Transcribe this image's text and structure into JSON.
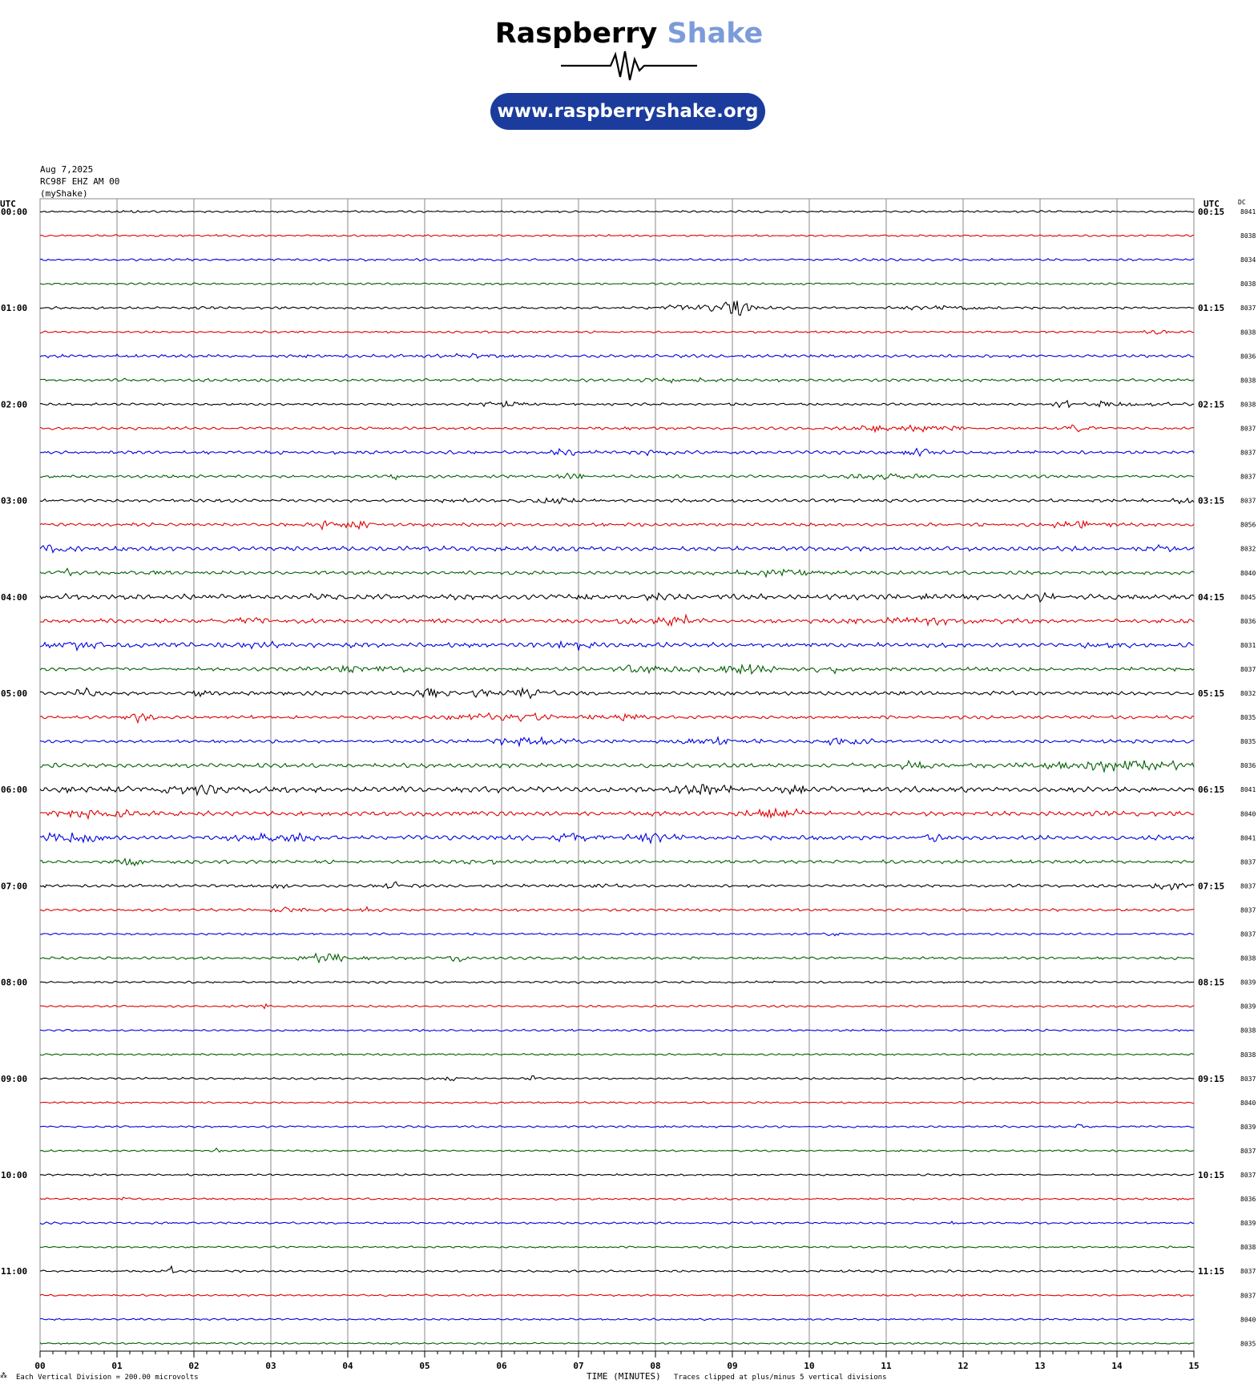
{
  "header": {
    "brand_primary": "Raspberry",
    "brand_accent": "Shake",
    "website": "www.raspberryshake.org",
    "date": "Aug 7,2025",
    "station": "RC98F EHZ AM 00",
    "network_label": "(myShake)"
  },
  "footer": {
    "scale_note": "Each Vertical Division = 200.00 microvolts",
    "xlabel": "TIME (MINUTES)",
    "clip_note": "Traces clipped at plus/minus 5 vertical divisions"
  },
  "colors": {
    "trace_cycle": [
      "#000000",
      "#e00000",
      "#0000e0",
      "#006000"
    ],
    "grid": "#888888",
    "brand_blue": "#1b3c9c",
    "brand_accent": "#7c9bd9"
  },
  "chart_data": {
    "type": "line",
    "title": "",
    "xlabel": "TIME (MINUTES)",
    "ylabel": "",
    "xlim": [
      0,
      15
    ],
    "x_ticks": [
      "00",
      "01",
      "02",
      "03",
      "04",
      "05",
      "06",
      "07",
      "08",
      "09",
      "10",
      "11",
      "12",
      "13",
      "14",
      "15"
    ],
    "left_axis_title": "UTC",
    "right_axis_title": "UTC",
    "dc_title": "DC",
    "hour_labels_left": [
      "00:00",
      "01:00",
      "02:00",
      "03:00",
      "04:00",
      "05:00",
      "06:00",
      "07:00",
      "08:00",
      "09:00",
      "10:00",
      "11:00"
    ],
    "hour_labels_right": [
      "00:15",
      "01:15",
      "02:15",
      "03:15",
      "04:15",
      "05:15",
      "06:15",
      "07:15",
      "08:15",
      "09:15",
      "10:15",
      "11:15"
    ],
    "dc_offsets": [
      "8041",
      "8038",
      "8034",
      "8038",
      "8037",
      "8038",
      "8036",
      "8038",
      "8038",
      "8037",
      "8037",
      "8037",
      "8037",
      "8056",
      "8032",
      "8040",
      "8045",
      "8036",
      "8031",
      "8037",
      "8032",
      "8035",
      "8035",
      "8036",
      "8041",
      "8040",
      "8041",
      "8037",
      "8037",
      "8037",
      "8037",
      "8038",
      "8039",
      "8039",
      "8038",
      "8038",
      "8037",
      "8040",
      "8039",
      "8037",
      "8037",
      "8036",
      "8039",
      "8038",
      "8037",
      "8037",
      "8040",
      "8035"
    ],
    "scale_microvolts_per_division": 200,
    "clip_divisions": 5,
    "series": [
      {
        "amp": 1.0,
        "bursts": [
          [
            1.2,
            0.2,
            1.5
          ]
        ]
      },
      {
        "amp": 1.0,
        "bursts": []
      },
      {
        "amp": 1.1,
        "bursts": []
      },
      {
        "amp": 1.0,
        "bursts": []
      },
      {
        "amp": 1.2,
        "bursts": [
          [
            8.6,
            0.6,
            3.5
          ],
          [
            9.05,
            0.15,
            12
          ],
          [
            11.8,
            0.5,
            2.5
          ]
        ]
      },
      {
        "amp": 1.0,
        "bursts": [
          [
            14.6,
            0.2,
            2
          ]
        ]
      },
      {
        "amp": 1.5,
        "bursts": [
          [
            5.6,
            0.3,
            1.8
          ]
        ]
      },
      {
        "amp": 1.4,
        "bursts": [
          [
            8.1,
            0.2,
            3
          ],
          [
            8.6,
            0.2,
            2
          ]
        ]
      },
      {
        "amp": 1.2,
        "bursts": [
          [
            6.0,
            0.3,
            2.5
          ],
          [
            13.3,
            0.1,
            5
          ],
          [
            13.9,
            0.2,
            4
          ],
          [
            14.4,
            0.3,
            3
          ]
        ]
      },
      {
        "amp": 1.3,
        "bursts": [
          [
            10.8,
            0.2,
            3
          ],
          [
            11.4,
            0.5,
            4
          ],
          [
            13.5,
            0.15,
            5
          ]
        ]
      },
      {
        "amp": 1.6,
        "bursts": [
          [
            6.9,
            0.2,
            4
          ],
          [
            8.05,
            0.15,
            4
          ],
          [
            11.4,
            0.2,
            5
          ]
        ]
      },
      {
        "amp": 1.4,
        "bursts": [
          [
            4.6,
            0.05,
            6
          ],
          [
            6.9,
            0.15,
            5
          ],
          [
            8.4,
            0.1,
            3
          ],
          [
            11.0,
            0.5,
            3
          ]
        ]
      },
      {
        "amp": 1.5,
        "bursts": [
          [
            5.8,
            0.6,
            2
          ],
          [
            6.7,
            0.3,
            3
          ],
          [
            14.9,
            0.2,
            4
          ]
        ]
      },
      {
        "amp": 1.6,
        "bursts": [
          [
            3.7,
            0.15,
            5
          ],
          [
            4.1,
            0.25,
            4
          ],
          [
            13.5,
            0.35,
            4
          ]
        ]
      },
      {
        "amp": 2.2,
        "bursts": [
          [
            0.2,
            0.2,
            5
          ],
          [
            1.1,
            0.1,
            3
          ],
          [
            14.6,
            0.2,
            3
          ]
        ]
      },
      {
        "amp": 1.8,
        "bursts": [
          [
            0.3,
            0.1,
            4
          ],
          [
            1.5,
            0.1,
            3
          ],
          [
            9.5,
            0.5,
            4
          ]
        ]
      },
      {
        "amp": 2.6,
        "bursts": [
          [
            3.6,
            0.2,
            3
          ],
          [
            7.1,
            0.1,
            6
          ],
          [
            8.0,
            0.1,
            5
          ],
          [
            13.1,
            0.15,
            4
          ]
        ]
      },
      {
        "amp": 2.0,
        "bursts": [
          [
            2.8,
            0.4,
            3
          ],
          [
            5.2,
            0.1,
            3
          ],
          [
            7.6,
            0.08,
            5
          ],
          [
            8.3,
            0.25,
            7
          ],
          [
            11.5,
            1.0,
            3
          ]
        ]
      },
      {
        "amp": 2.2,
        "bursts": [
          [
            0.4,
            0.4,
            4
          ],
          [
            2.8,
            0.3,
            3
          ],
          [
            6.9,
            0.3,
            6
          ],
          [
            13.8,
            0.2,
            5
          ]
        ]
      },
      {
        "amp": 1.8,
        "bursts": [
          [
            4.2,
            0.6,
            4
          ],
          [
            7.9,
            0.4,
            5
          ],
          [
            9.2,
            0.7,
            6
          ],
          [
            10.3,
            0.1,
            5
          ]
        ]
      },
      {
        "amp": 1.8,
        "bursts": [
          [
            0.6,
            0.15,
            6
          ],
          [
            2.1,
            0.15,
            4
          ],
          [
            5.1,
            0.2,
            6
          ],
          [
            5.7,
            0.1,
            6
          ],
          [
            6.3,
            0.3,
            6
          ]
        ]
      },
      {
        "amp": 1.6,
        "bursts": [
          [
            1.3,
            0.15,
            6
          ],
          [
            6.0,
            0.6,
            6
          ],
          [
            7.5,
            0.3,
            6
          ]
        ]
      },
      {
        "amp": 1.6,
        "bursts": [
          [
            6.5,
            0.6,
            5
          ],
          [
            8.8,
            0.4,
            5
          ],
          [
            10.5,
            0.3,
            4
          ]
        ]
      },
      {
        "amp": 2.0,
        "bursts": [
          [
            11.4,
            0.2,
            5
          ],
          [
            13.9,
            0.9,
            7
          ]
        ]
      },
      {
        "amp": 2.6,
        "bursts": [
          [
            2.0,
            0.6,
            5
          ],
          [
            8.6,
            0.4,
            6
          ],
          [
            9.8,
            0.15,
            5
          ]
        ]
      },
      {
        "amp": 2.2,
        "bursts": [
          [
            0.7,
            0.5,
            5
          ],
          [
            9.6,
            0.4,
            5
          ]
        ]
      },
      {
        "amp": 2.2,
        "bursts": [
          [
            0.4,
            0.4,
            6
          ],
          [
            2.7,
            0.3,
            5
          ],
          [
            3.3,
            0.3,
            5
          ],
          [
            6.9,
            0.3,
            5
          ],
          [
            8.0,
            0.3,
            5
          ],
          [
            11.6,
            0.15,
            4
          ]
        ]
      },
      {
        "amp": 1.6,
        "bursts": [
          [
            1.2,
            0.2,
            4
          ],
          [
            5.6,
            0.3,
            3
          ]
        ]
      },
      {
        "amp": 1.4,
        "bursts": [
          [
            3.1,
            0.1,
            4
          ],
          [
            4.6,
            0.2,
            4
          ],
          [
            7.4,
            0.15,
            4
          ],
          [
            14.7,
            0.2,
            4
          ]
        ]
      },
      {
        "amp": 1.3,
        "bursts": [
          [
            3.2,
            0.2,
            4
          ],
          [
            4.2,
            0.15,
            3
          ]
        ]
      },
      {
        "amp": 1.0,
        "bursts": [
          [
            10.3,
            0.05,
            5
          ]
        ]
      },
      {
        "amp": 1.3,
        "bursts": [
          [
            3.7,
            0.3,
            6
          ],
          [
            5.4,
            0.15,
            5
          ]
        ]
      },
      {
        "amp": 1.0,
        "bursts": []
      },
      {
        "amp": 1.0,
        "bursts": [
          [
            2.9,
            0.05,
            6
          ]
        ]
      },
      {
        "amp": 1.0,
        "bursts": []
      },
      {
        "amp": 0.9,
        "bursts": []
      },
      {
        "amp": 1.0,
        "bursts": [
          [
            5.3,
            0.15,
            3
          ],
          [
            6.4,
            0.05,
            4
          ]
        ]
      },
      {
        "amp": 0.9,
        "bursts": [
          [
            5.9,
            0.05,
            4
          ]
        ]
      },
      {
        "amp": 1.0,
        "bursts": [
          [
            13.5,
            0.05,
            4
          ]
        ]
      },
      {
        "amp": 0.9,
        "bursts": [
          [
            2.3,
            0.05,
            3
          ]
        ]
      },
      {
        "amp": 0.9,
        "bursts": []
      },
      {
        "amp": 1.0,
        "bursts": [
          [
            1.1,
            0.05,
            3
          ]
        ]
      },
      {
        "amp": 1.0,
        "bursts": [
          [
            11.9,
            0.05,
            4
          ]
        ]
      },
      {
        "amp": 0.9,
        "bursts": []
      },
      {
        "amp": 1.0,
        "bursts": [
          [
            1.7,
            0.05,
            5
          ]
        ]
      },
      {
        "amp": 0.9,
        "bursts": []
      },
      {
        "amp": 0.9,
        "bursts": []
      },
      {
        "amp": 0.9,
        "bursts": []
      }
    ]
  }
}
